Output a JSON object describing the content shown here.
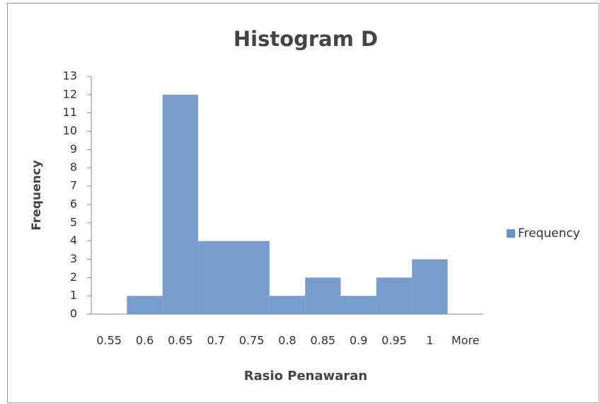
{
  "chart_data": {
    "type": "bar",
    "title": "Histogram D",
    "x_label": "Rasio Penawaran",
    "y_label": "Frequency",
    "categories": [
      "0.55",
      "0.6",
      "0.65",
      "0.7",
      "0.75",
      "0.8",
      "0.85",
      "0.9",
      "0.95",
      "1",
      "More"
    ],
    "series": [
      {
        "name": "Frequency",
        "color": "#4f81bd",
        "values": [
          0,
          1,
          12,
          4,
          4,
          1,
          2,
          1,
          2,
          3,
          0
        ]
      }
    ],
    "ylim": [
      0,
      13
    ],
    "yticks": [
      0,
      1,
      2,
      3,
      4,
      5,
      6,
      7,
      8,
      9,
      10,
      11,
      12,
      13
    ],
    "grid": false,
    "legend": "right"
  }
}
